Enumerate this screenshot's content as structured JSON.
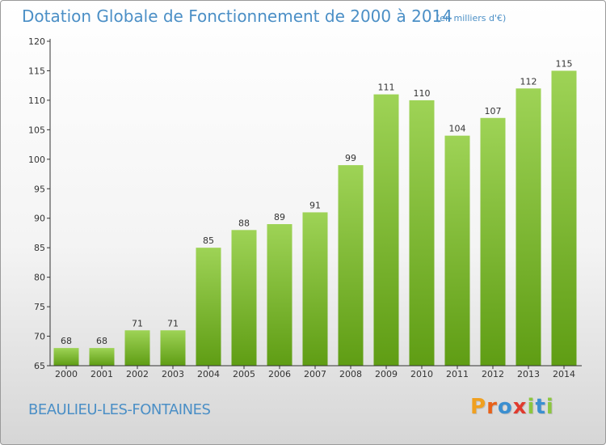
{
  "header": {
    "title": "Dotation Globale de Fonctionnement de 2000 à 2014",
    "unit": "(en milliers d'€)"
  },
  "footer": {
    "commune": "BEAULIEU-LES-FONTAINES",
    "logo": {
      "letters": [
        "P",
        "r",
        "o",
        "x",
        "i",
        "t",
        "i"
      ]
    }
  },
  "colors": {
    "title": "#4b8fc6",
    "bar_top": "#9ed356",
    "bar_bottom": "#5f9d14",
    "axis": "#333333",
    "logo_letters": [
      "#f0a020",
      "#e8621a",
      "#3b8fd0",
      "#e03a2e",
      "#8cc63f",
      "#3b8fd0",
      "#8cc63f"
    ]
  },
  "chart_data": {
    "type": "bar",
    "title": "Dotation Globale de Fonctionnement de 2000 à 2014",
    "subtitle": "(en milliers d'€)",
    "categories": [
      "2000",
      "2001",
      "2002",
      "2003",
      "2004",
      "2005",
      "2006",
      "2007",
      "2008",
      "2009",
      "2010",
      "2011",
      "2012",
      "2013",
      "2014"
    ],
    "values": [
      68,
      68,
      71,
      71,
      85,
      88,
      89,
      91,
      99,
      111,
      110,
      104,
      107,
      112,
      115
    ],
    "xlabel": "",
    "ylabel": "",
    "ylim": [
      65,
      120
    ],
    "yticks": [
      65,
      70,
      75,
      80,
      85,
      90,
      95,
      100,
      105,
      110,
      115,
      120
    ],
    "grid": false,
    "legend": "none",
    "data_labels": true
  }
}
